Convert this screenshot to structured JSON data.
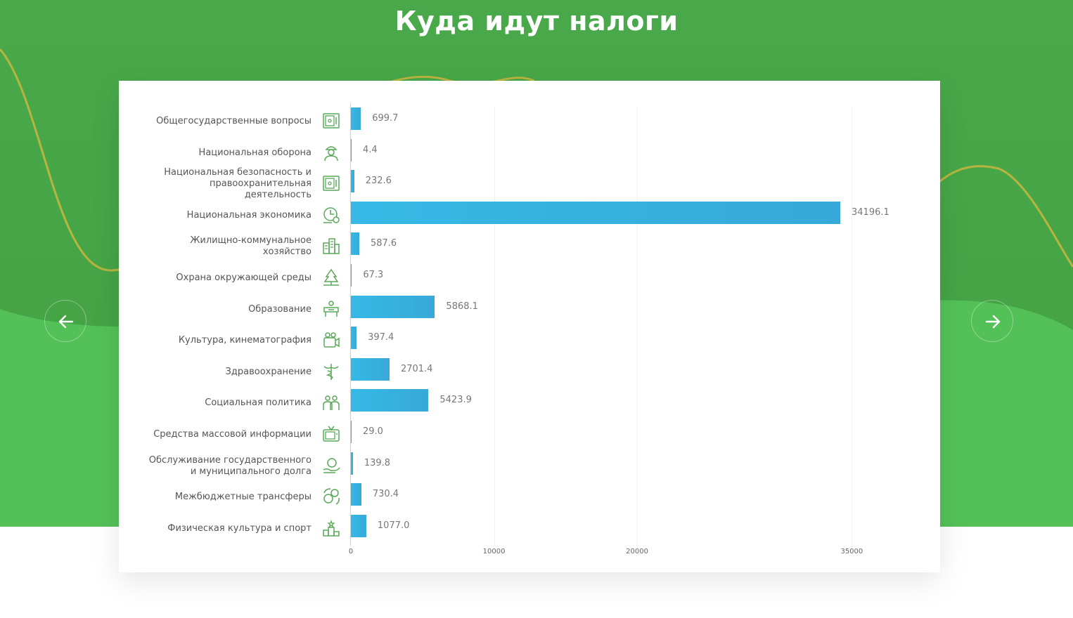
{
  "page": {
    "title": "Куда идут налоги"
  },
  "colors": {
    "background_top": "#49a94a",
    "background_bottom": "#53c158",
    "curve": "#b7b540",
    "bar": "#36b9e6",
    "icon": "#5aa85a"
  },
  "navigation": {
    "prev_icon": "arrow-left-icon",
    "next_icon": "arrow-right-icon"
  },
  "chart_data": {
    "type": "bar",
    "orientation": "horizontal",
    "title": "",
    "xlabel": "",
    "ylabel": "",
    "categories": [
      "Общегосударственные вопросы",
      "Национальная оборона",
      "Национальная безопасность и правоохранительная деятельность",
      "Национальная экономика",
      "Жилищно-коммунальное хозяйство",
      "Охрана окружающей среды",
      "Образование",
      "Культура, кинематография",
      "Здравоохранение",
      "Социальная политика",
      "Средства массовой информации",
      "Обслуживание государственного и муниципального долга",
      "Межбюджетные трансферы",
      "Физическая культура и спорт"
    ],
    "values": [
      699.7,
      4.4,
      232.6,
      34196.1,
      587.6,
      67.3,
      5868.1,
      397.4,
      2701.4,
      5423.9,
      29.0,
      139.8,
      730.4,
      1077.0
    ],
    "value_labels": [
      "699.7",
      "4.4",
      "232.6",
      "34196.1",
      "587.6",
      "67.3",
      "5868.1",
      "397.4",
      "2701.4",
      "5423.9",
      "29.0",
      "139.8",
      "730.4",
      "1077.0"
    ],
    "icons": [
      "safe-icon",
      "soldier-icon",
      "safe-icon",
      "clock-coin-icon",
      "buildings-icon",
      "trees-icon",
      "school-desk-icon",
      "film-camera-icon",
      "caduceus-icon",
      "family-icon",
      "tv-icon",
      "coin-hand-icon",
      "exchange-coins-icon",
      "podium-icon"
    ],
    "x_ticks": [
      "0",
      "10000",
      "20000",
      "35000"
    ],
    "x_tick_values": [
      0,
      10000,
      20000,
      35000
    ],
    "xlim": [
      0,
      35000
    ],
    "grid": true,
    "legend": "none"
  }
}
